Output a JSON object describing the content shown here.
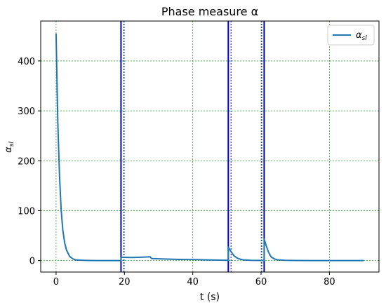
{
  "chart_data": {
    "type": "line",
    "title": "Phase measure α",
    "xlabel": "t (s)",
    "ylabel": "α_sl",
    "xlim": [
      -4.5,
      94.5
    ],
    "ylim": [
      -23,
      480
    ],
    "xticks": [
      0,
      20,
      40,
      60,
      80
    ],
    "yticks": [
      0,
      100,
      200,
      300,
      400
    ],
    "grid": true,
    "grid_style": "dotted",
    "grid_color": "#2ca02c",
    "legend_position": "top-right",
    "series": [
      {
        "name": "α_sl",
        "color": "#1f77b4",
        "x": [
          0,
          0.5,
          1,
          1.5,
          2,
          2.5,
          3,
          4,
          5,
          6,
          8,
          10,
          12,
          15,
          18,
          19,
          19.01,
          20,
          22,
          24,
          26,
          27.5,
          28,
          30,
          35,
          40,
          45,
          50.4,
          50.41,
          51,
          52,
          53,
          54,
          55,
          57,
          60,
          60.9,
          60.91,
          61.5,
          62,
          62.5,
          63,
          64,
          65,
          67,
          70,
          75,
          80,
          85,
          90
        ],
        "y": [
          455,
          280,
          170,
          100,
          60,
          36,
          22,
          8,
          3,
          1,
          0.5,
          0.2,
          0.1,
          0.1,
          0.1,
          0.1,
          6.5,
          6.5,
          6.2,
          6.5,
          7,
          7.5,
          4,
          3.5,
          2.5,
          1.8,
          1.2,
          0.5,
          27,
          20,
          10,
          5,
          2.5,
          1.2,
          0.4,
          0.2,
          0.2,
          43,
          30,
          20,
          12,
          7,
          3,
          1.2,
          0.4,
          0.2,
          0.1,
          0.1,
          0.1,
          0.1
        ]
      }
    ],
    "vertical_lines": [
      {
        "x": 19.0,
        "color": "#0000cc",
        "style": "solid"
      },
      {
        "x": 19.8,
        "color": "#0000cc",
        "style": "dotted"
      },
      {
        "x": 50.4,
        "color": "#0000cc",
        "style": "solid"
      },
      {
        "x": 51.2,
        "color": "#0000cc",
        "style": "dotted"
      },
      {
        "x": 60.2,
        "color": "#0000cc",
        "style": "dotted"
      },
      {
        "x": 60.9,
        "color": "#0000cc",
        "style": "solid"
      }
    ]
  }
}
